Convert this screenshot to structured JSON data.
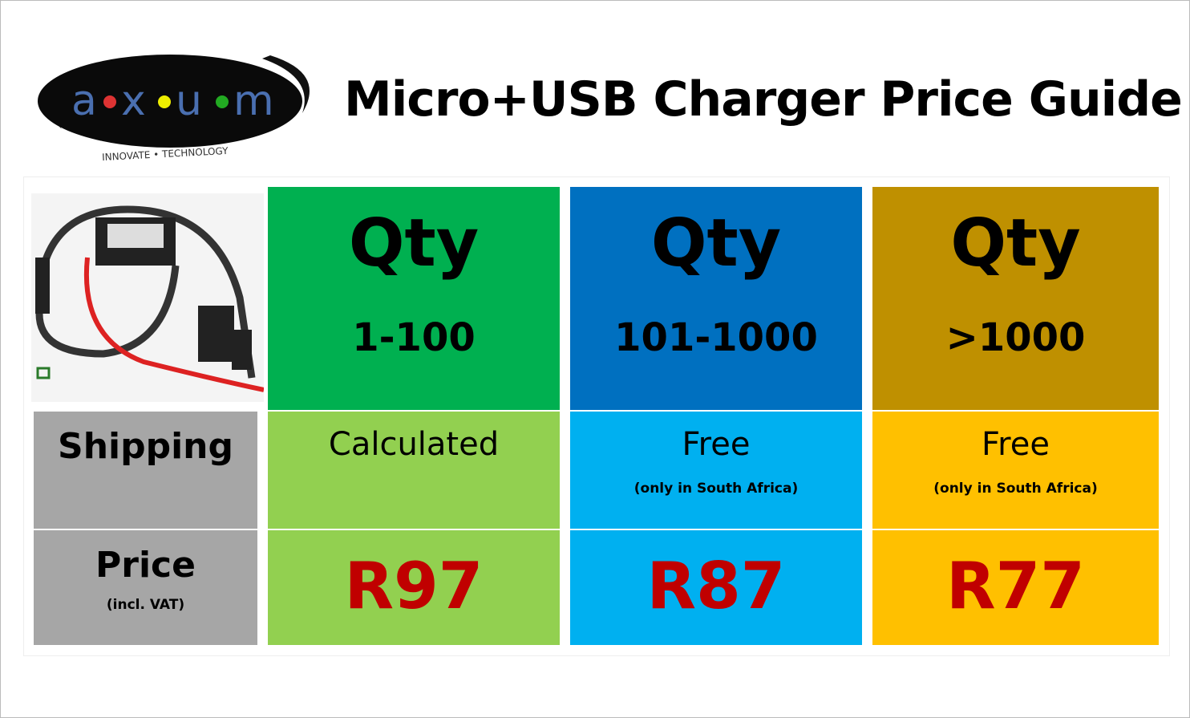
{
  "logo": {
    "text": "axum",
    "tagline": "INNOVATE • TECHNOLOGY"
  },
  "title": "Micro+USB Charger Price Guide",
  "colors": {
    "green": "#00b050",
    "light_green": "#92d050",
    "blue": "#0070c0",
    "light_blue": "#00b0f0",
    "gold": "#bf9000",
    "yellow": "#ffc000",
    "gray": "#a6a6a6",
    "price_red": "#c00000"
  },
  "row_labels": {
    "shipping": "Shipping",
    "price": "Price",
    "price_note": "(incl. VAT)"
  },
  "tiers": [
    {
      "qty": "Qty",
      "range": "1-100",
      "shipping": "Calculated",
      "shipping_note": "",
      "price": "R97"
    },
    {
      "qty": "Qty",
      "range": "101-1000",
      "shipping": "Free",
      "shipping_note": "(only in South Africa)",
      "price": "R87"
    },
    {
      "qty": "Qty",
      "range": ">1000",
      "shipping": "Free",
      "shipping_note": "(only in South Africa)",
      "price": "R77"
    }
  ]
}
